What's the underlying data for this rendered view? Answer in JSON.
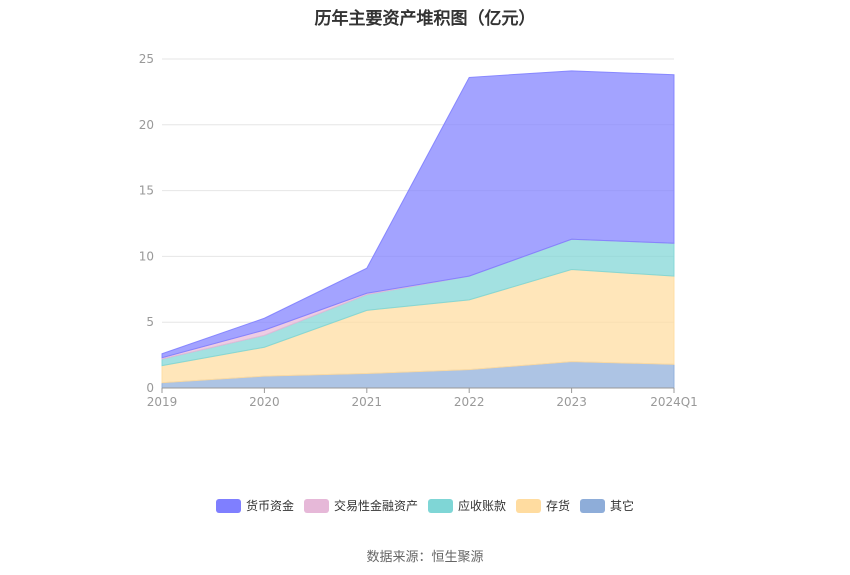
{
  "chart_data": {
    "type": "area",
    "stacked": true,
    "title": "历年主要资产堆积图（亿元）",
    "categories": [
      "2019",
      "2020",
      "2021",
      "2022",
      "2023",
      "2024Q1"
    ],
    "ylim": [
      0,
      25
    ],
    "yticks": [
      0,
      5,
      10,
      15,
      20,
      25
    ],
    "grid": true,
    "legend_position": "bottom",
    "series": [
      {
        "name": "其它",
        "color": "#8eadd9",
        "values": [
          0.4,
          0.9,
          1.1,
          1.4,
          2.0,
          1.8
        ]
      },
      {
        "name": "存货",
        "color": "#ffdca0",
        "values": [
          1.3,
          2.2,
          4.8,
          5.3,
          7.0,
          6.7
        ]
      },
      {
        "name": "应收账款",
        "color": "#7fd6d6",
        "values": [
          0.5,
          0.9,
          1.2,
          1.8,
          2.3,
          2.5
        ]
      },
      {
        "name": "交易性金融资产",
        "color": "#e6b8d8",
        "values": [
          0.1,
          0.4,
          0.1,
          0.0,
          0.0,
          0.0
        ]
      },
      {
        "name": "货币资金",
        "color": "#7f7fff",
        "values": [
          0.3,
          0.9,
          1.9,
          15.1,
          12.8,
          12.8
        ]
      }
    ],
    "legend_order": [
      "货币资金",
      "交易性金融资产",
      "应收账款",
      "存货",
      "其它"
    ],
    "source": "数据来源：恒生聚源"
  }
}
